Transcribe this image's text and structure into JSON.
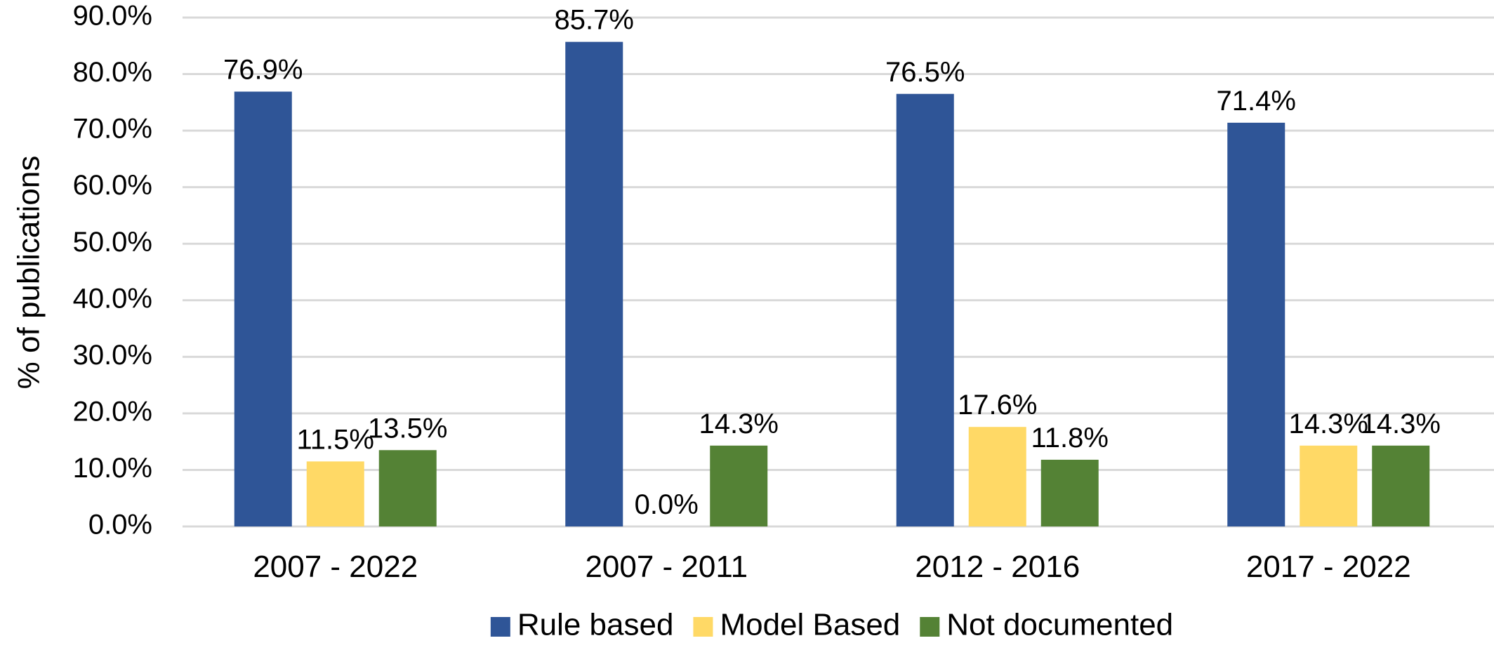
{
  "chart_data": {
    "type": "bar",
    "title": "",
    "xlabel": "",
    "ylabel": "% of publications",
    "ylim": [
      0,
      90
    ],
    "ytick_step": 10,
    "ytick_labels": [
      "0.0%",
      "10.0%",
      "20.0%",
      "30.0%",
      "40.0%",
      "50.0%",
      "60.0%",
      "70.0%",
      "80.0%",
      "90.0%"
    ],
    "grid": true,
    "legend_position": "bottom",
    "categories": [
      "2007 - 2022",
      "2007 - 2011",
      "2012 - 2016",
      "2017 - 2022"
    ],
    "series": [
      {
        "name": "Rule based",
        "color": "#2F5597",
        "values": [
          76.9,
          85.7,
          76.5,
          71.4
        ],
        "labels": [
          "76.9%",
          "85.7%",
          "76.5%",
          "71.4%"
        ]
      },
      {
        "name": "Model Based",
        "color": "#FFD966",
        "values": [
          11.5,
          0.0,
          17.6,
          14.3
        ],
        "labels": [
          "11.5%",
          "0.0%",
          "17.6%",
          "14.3%"
        ]
      },
      {
        "name": "Not documented",
        "color": "#548235",
        "values": [
          13.5,
          14.3,
          11.8,
          14.3
        ],
        "labels": [
          "13.5%",
          "14.3%",
          "11.8%",
          "14.3%"
        ]
      }
    ]
  }
}
